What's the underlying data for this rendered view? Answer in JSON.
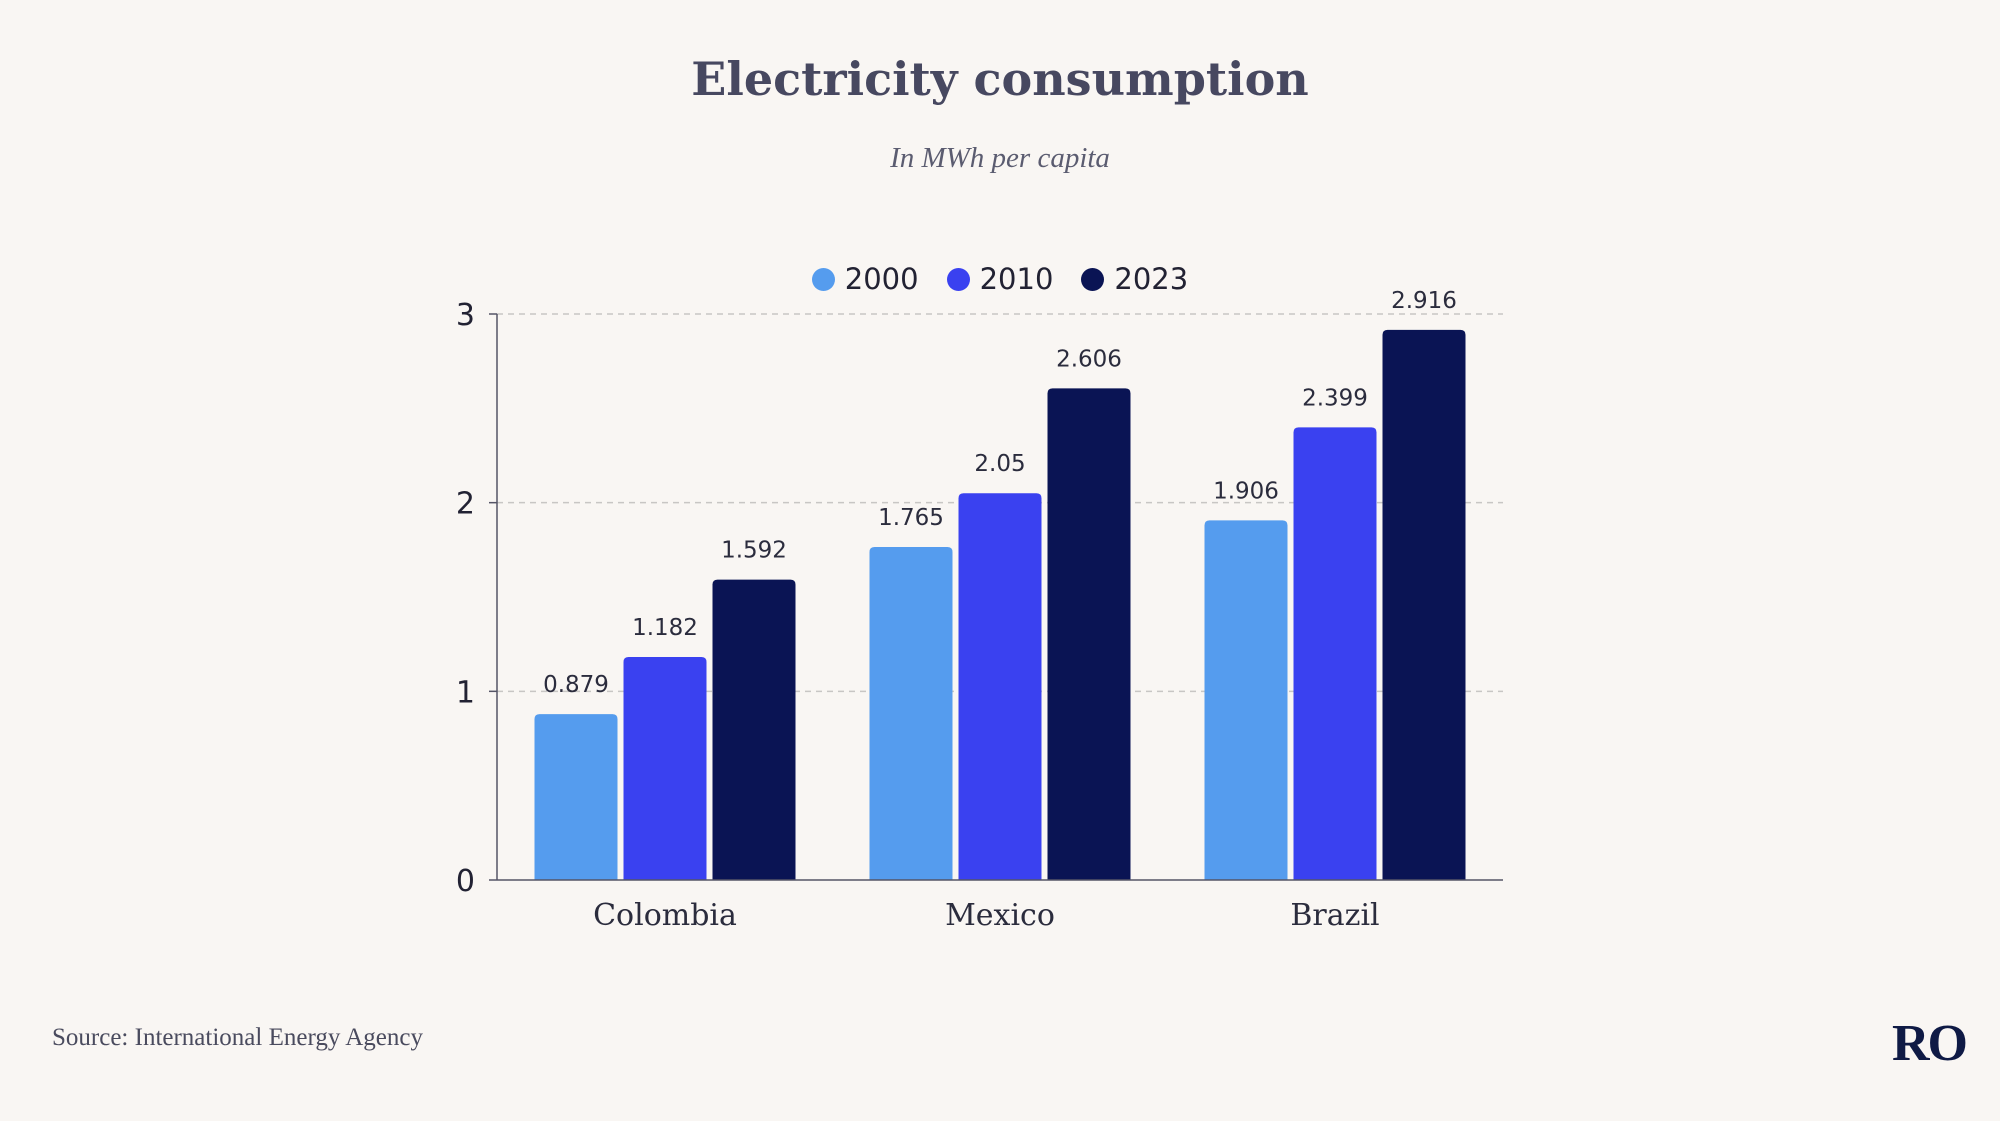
{
  "header": {
    "title": "Electricity consumption",
    "subtitle": "In MWh per capita"
  },
  "footer": {
    "source": "Source: International Energy Agency",
    "logo": "RO"
  },
  "colors": {
    "2000": "#559cee",
    "2010": "#3a41f0",
    "2023": "#0a1454",
    "axis": "#555566",
    "grid": "#c8c6c4"
  },
  "chart_data": {
    "type": "bar",
    "title": "Electricity consumption",
    "subtitle": "In MWh per capita",
    "categories": [
      "Colombia",
      "Mexico",
      "Brazil"
    ],
    "series": [
      {
        "name": "2000",
        "values": [
          0.879,
          1.765,
          1.906
        ],
        "labels": [
          "0.879",
          "1.765",
          "1.906"
        ]
      },
      {
        "name": "2010",
        "values": [
          1.182,
          2.05,
          2.399
        ],
        "labels": [
          "1.182",
          "2.05",
          "2.399"
        ]
      },
      {
        "name": "2023",
        "values": [
          1.592,
          2.606,
          2.916
        ],
        "labels": [
          "1.592",
          "2.606",
          "2.916"
        ]
      }
    ],
    "yticks": [
      "0",
      "1",
      "2",
      "3"
    ],
    "ylim": [
      0,
      3
    ],
    "xlabel": "",
    "ylabel": "",
    "grid": true,
    "legend": "top-center"
  }
}
